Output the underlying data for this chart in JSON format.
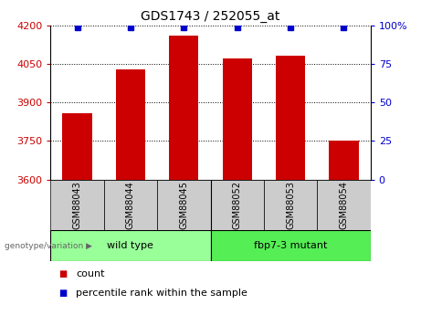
{
  "title": "GDS1743 / 252055_at",
  "samples": [
    "GSM88043",
    "GSM88044",
    "GSM88045",
    "GSM88052",
    "GSM88053",
    "GSM88054"
  ],
  "bar_values": [
    3858,
    4028,
    4160,
    4072,
    4082,
    3753
  ],
  "percentile_values": [
    4192,
    4192,
    4192,
    4192,
    4192,
    4190
  ],
  "ylim": [
    3600,
    4200
  ],
  "yticks": [
    3600,
    3750,
    3900,
    4050,
    4200
  ],
  "y2ticks": [
    0,
    25,
    50,
    75,
    100
  ],
  "bar_color": "#cc0000",
  "dot_color": "#0000cc",
  "bar_bottom": 3600,
  "groups": [
    {
      "label": "wild type",
      "color": "#99ff99",
      "start": 0,
      "end": 3
    },
    {
      "label": "fbp7-3 mutant",
      "color": "#55ee55",
      "start": 3,
      "end": 6
    }
  ],
  "group_label": "genotype/variation",
  "legend_count_label": "count",
  "legend_pct_label": "percentile rank within the sample",
  "tick_color_left": "#cc0000",
  "tick_color_right": "#0000cc",
  "xlabel_bg_color": "#cccccc",
  "title_fontsize": 10,
  "tick_fontsize": 8,
  "label_fontsize": 7,
  "group_fontsize": 8,
  "legend_fontsize": 8
}
